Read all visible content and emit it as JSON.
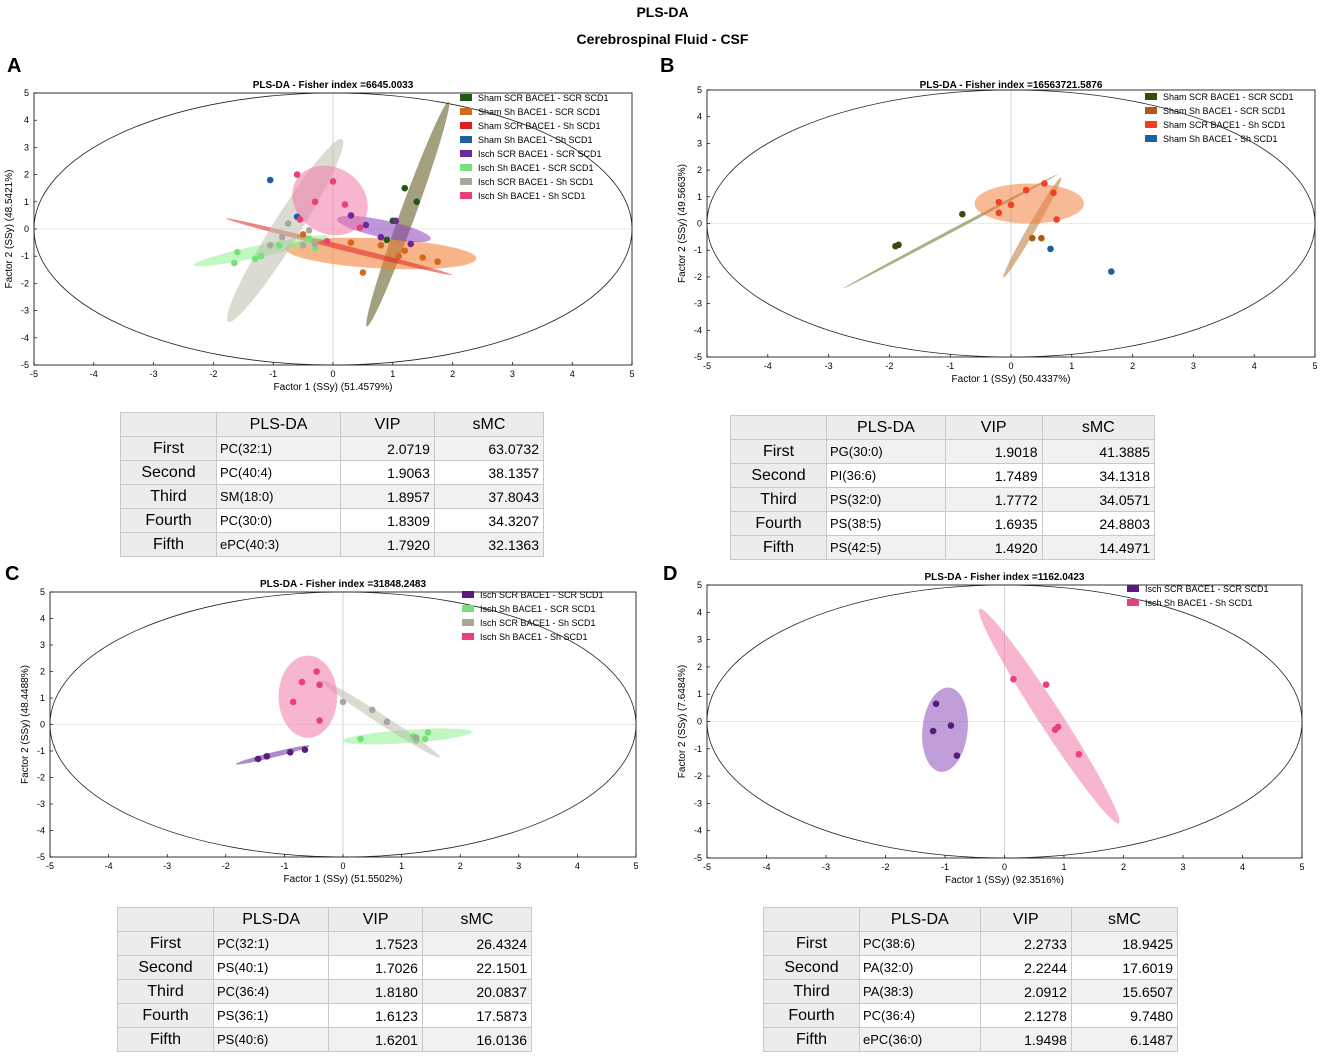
{
  "figure": {
    "title": "PLS-DA",
    "subtitle": "Cerebrospinal Fluid - CSF"
  },
  "panels": [
    {
      "letter": "A"
    },
    {
      "letter": "B"
    },
    {
      "letter": "C"
    },
    {
      "letter": "D"
    }
  ],
  "chart_data": [
    {
      "type": "scatter",
      "panel": "A",
      "title": "PLS-DA - Fisher index =6645.0033",
      "xlabel": "Factor 1 (SSy) (51.4579%)",
      "ylabel": "Factor 2 (SSy) (48.5421%)",
      "xlim": [
        -5,
        5
      ],
      "ylim": [
        -5,
        5
      ],
      "xticks": [
        -5,
        -4,
        -3,
        -2,
        -1,
        0,
        1,
        2,
        3,
        4,
        5
      ],
      "yticks": [
        -5,
        -4,
        -3,
        -2,
        -1,
        0,
        1,
        2,
        3,
        4,
        5
      ],
      "legend_position": "top-right",
      "series": [
        {
          "name": "Sham SCR BACE1 - SCR SCD1",
          "color": "#1e5a14",
          "fill": "#5a5014",
          "points": [
            [
              1.2,
              1.5
            ],
            [
              1.4,
              1.0
            ],
            [
              1.0,
              0.3
            ],
            [
              0.9,
              -0.4
            ]
          ],
          "ellipse": {
            "cx": 1.25,
            "cy": 0.55,
            "rx": 2.0,
            "ry": 0.28,
            "angle": 70
          }
        },
        {
          "name": "Sham Sh BACE1 - SCR SCD1",
          "color": "#d2691e",
          "fill": "#f07828",
          "points": [
            [
              -0.5,
              -0.2
            ],
            [
              0.3,
              -0.5
            ],
            [
              0.8,
              -0.6
            ],
            [
              1.1,
              -1.0
            ],
            [
              1.5,
              -1.05
            ],
            [
              1.75,
              -1.2
            ],
            [
              0.5,
              -1.6
            ],
            [
              1.2,
              -0.8
            ]
          ],
          "ellipse": {
            "cx": 0.8,
            "cy": -0.9,
            "rx": 1.6,
            "ry": 0.55,
            "angle": -3
          }
        },
        {
          "name": "Sham SCR BACE1 - Sh SCD1",
          "color": "#e02020",
          "fill": "#e02020",
          "points": [],
          "ellipse": {
            "cx": 0.1,
            "cy": -0.65,
            "rx": 1.95,
            "ry": 0.1,
            "angle": -14
          }
        },
        {
          "name": "Sham Sh BACE1 - Sh SCD1",
          "color": "#1f5fa0",
          "fill": "#4f9ae0",
          "points": [
            [
              -1.05,
              1.8
            ],
            [
              -0.6,
              0.45
            ]
          ],
          "ellipse": null
        },
        {
          "name": "Isch SCR BACE1 - SCR SCD1",
          "color": "#6a2a9a",
          "fill": "#8a3fbf",
          "points": [
            [
              0.3,
              0.5
            ],
            [
              0.8,
              -0.3
            ],
            [
              1.3,
              -0.55
            ],
            [
              1.05,
              0.3
            ],
            [
              0.55,
              0.15
            ]
          ],
          "ellipse": {
            "cx": 0.85,
            "cy": 0.0,
            "rx": 0.8,
            "ry": 0.32,
            "angle": -12
          }
        },
        {
          "name": "Isch Sh BACE1 - SCR SCD1",
          "color": "#78e078",
          "fill": "#8ef08e",
          "points": [
            [
              -1.6,
              -0.85
            ],
            [
              -1.3,
              -1.1
            ],
            [
              -1.2,
              -1.0
            ],
            [
              -0.9,
              -0.6
            ],
            [
              -0.4,
              -0.35
            ],
            [
              -0.3,
              -0.7
            ],
            [
              -1.65,
              -1.25
            ]
          ],
          "ellipse": {
            "cx": -1.2,
            "cy": -0.8,
            "rx": 1.15,
            "ry": 0.22,
            "angle": 12
          }
        },
        {
          "name": "Isch SCR BACE1 - Sh SCD1",
          "color": "#a8a898",
          "fill": "#bdbdad",
          "points": [
            [
              -1.05,
              -0.6
            ],
            [
              -0.85,
              -0.3
            ],
            [
              -0.75,
              0.2
            ],
            [
              -0.5,
              -0.6
            ],
            [
              -0.3,
              -0.55
            ],
            [
              -0.4,
              -0.05
            ]
          ],
          "ellipse": {
            "cx": -0.8,
            "cy": -0.05,
            "rx": 1.8,
            "ry": 0.5,
            "angle": 58
          }
        },
        {
          "name": "Isch Sh BACE1 - Sh SCD1",
          "color": "#e8407a",
          "fill": "#f078a8",
          "points": [
            [
              -0.6,
              2.0
            ],
            [
              0.0,
              1.75
            ],
            [
              -0.3,
              1.0
            ],
            [
              0.2,
              0.9
            ],
            [
              0.45,
              0.05
            ],
            [
              -0.1,
              -0.45
            ],
            [
              -0.55,
              0.35
            ]
          ],
          "ellipse": {
            "cx": -0.05,
            "cy": 1.05,
            "rx": 0.55,
            "ry": 1.45,
            "angle": 58
          }
        }
      ]
    },
    {
      "type": "scatter",
      "panel": "B",
      "title": "PLS-DA - Fisher index =16563721.5876",
      "xlabel": "Factor 1 (SSy) (50.4337%)",
      "ylabel": "Factor 2 (SSy) (49.5663%)",
      "xlim": [
        -5,
        5
      ],
      "ylim": [
        -5,
        5
      ],
      "xticks": [
        -5,
        -4,
        -3,
        -2,
        -1,
        0,
        1,
        2,
        3,
        4,
        5
      ],
      "yticks": [
        -5,
        -4,
        -3,
        -2,
        -1,
        0,
        1,
        2,
        3,
        4,
        5
      ],
      "legend_position": "top-right",
      "series": [
        {
          "name": "Sham SCR BACE1 - SCR SCD1",
          "color": "#3a4a10",
          "fill": "#6b7020",
          "points": [
            [
              -1.9,
              -0.85
            ],
            [
              -1.85,
              -0.8
            ],
            [
              -0.8,
              0.35
            ]
          ],
          "ellipse": {
            "cx": -1.0,
            "cy": -0.3,
            "rx": 2.0,
            "ry": 0.06,
            "angle": 28
          }
        },
        {
          "name": "Sham Sh BACE1 - SCR SCD1",
          "color": "#b05a10",
          "fill": "#b87a38",
          "points": [
            [
              0.35,
              -0.55
            ],
            [
              0.5,
              -0.55
            ]
          ],
          "ellipse": {
            "cx": 0.35,
            "cy": -0.15,
            "rx": 0.95,
            "ry": 0.15,
            "angle": 60
          }
        },
        {
          "name": "Sham SCR BACE1 - Sh SCD1",
          "color": "#f04020",
          "fill": "#f08040",
          "points": [
            [
              0.25,
              1.25
            ],
            [
              0.55,
              1.5
            ],
            [
              0.7,
              1.15
            ],
            [
              -0.2,
              0.8
            ],
            [
              0.0,
              0.7
            ],
            [
              0.75,
              0.15
            ],
            [
              -0.2,
              0.4
            ]
          ],
          "ellipse": {
            "cx": 0.3,
            "cy": 0.75,
            "rx": 0.9,
            "ry": 0.75,
            "angle": 0
          }
        },
        {
          "name": "Sham Sh BACE1 - Sh SCD1",
          "color": "#1f5fa0",
          "fill": "#4f9ae0",
          "points": [
            [
              0.65,
              -0.95
            ],
            [
              1.65,
              -1.8
            ]
          ],
          "ellipse": null
        }
      ]
    },
    {
      "type": "scatter",
      "panel": "C",
      "title": "PLS-DA - Fisher index =31848.2483",
      "xlabel": "Factor 1 (SSy) (51.5502%)",
      "ylabel": "Factor 2 (SSy) (48.4488%)",
      "xlim": [
        -5,
        5
      ],
      "ylim": [
        -5,
        5
      ],
      "xticks": [
        -5,
        -4,
        -3,
        -2,
        -1,
        0,
        1,
        2,
        3,
        4,
        5
      ],
      "yticks": [
        -5,
        -4,
        -3,
        -2,
        -1,
        0,
        1,
        2,
        3,
        4,
        5
      ],
      "legend_position": "top-right",
      "series": [
        {
          "name": "Isch SCR BACE1 - SCR SCD1",
          "color": "#5a1a82",
          "fill": "#6a2a9a",
          "points": [
            [
              -1.45,
              -1.3
            ],
            [
              -1.3,
              -1.2
            ],
            [
              -0.9,
              -1.05
            ],
            [
              -0.65,
              -0.95
            ]
          ],
          "ellipse": {
            "cx": -1.2,
            "cy": -1.15,
            "rx": 0.65,
            "ry": 0.1,
            "angle": 14
          }
        },
        {
          "name": "Isch Sh BACE1 - SCR SCD1",
          "color": "#78e078",
          "fill": "#8ef08e",
          "points": [
            [
              0.3,
              -0.55
            ],
            [
              1.45,
              -0.3
            ],
            [
              1.2,
              -0.45
            ],
            [
              1.4,
              -0.55
            ],
            [
              1.25,
              -0.6
            ]
          ],
          "ellipse": {
            "cx": 1.1,
            "cy": -0.45,
            "rx": 1.1,
            "ry": 0.25,
            "angle": 4
          }
        },
        {
          "name": "Isch SCR BACE1 - Sh SCD1",
          "color": "#a8a898",
          "fill": "#bdbdad",
          "points": [
            [
              0.0,
              0.85
            ],
            [
              0.5,
              0.55
            ],
            [
              0.75,
              0.1
            ],
            [
              1.25,
              -0.5
            ]
          ],
          "ellipse": {
            "cx": 0.65,
            "cy": 0.2,
            "rx": 1.2,
            "ry": 0.18,
            "angle": -33
          }
        },
        {
          "name": "Isch Sh BACE1 - Sh SCD1",
          "color": "#e8407a",
          "fill": "#f078a8",
          "points": [
            [
              -0.7,
              1.6
            ],
            [
              -0.45,
              2.0
            ],
            [
              -0.4,
              1.5
            ],
            [
              -0.85,
              0.85
            ],
            [
              -0.4,
              0.15
            ]
          ],
          "ellipse": {
            "cx": -0.6,
            "cy": 1.05,
            "rx": 0.5,
            "ry": 1.55,
            "angle": 0
          }
        }
      ]
    },
    {
      "type": "scatter",
      "panel": "D",
      "title": "PLS-DA - Fisher index =1162.0423",
      "xlabel": "Factor 1 (SSy) (92.3516%)",
      "ylabel": "Factor 2 (SSy) (7.6484%)",
      "xlim": [
        -5,
        5
      ],
      "ylim": [
        -5,
        5
      ],
      "xticks": [
        -5,
        -4,
        -3,
        -2,
        -1,
        0,
        1,
        2,
        3,
        4,
        5
      ],
      "yticks": [
        -5,
        -4,
        -3,
        -2,
        -1,
        0,
        1,
        2,
        3,
        4,
        5
      ],
      "legend_position": "top-left",
      "series": [
        {
          "name": "Isch SCR BACE1 - SCR SCD1",
          "color": "#5a1a82",
          "fill": "#8a4fba",
          "points": [
            [
              -1.15,
              0.65
            ],
            [
              -0.9,
              -0.15
            ],
            [
              -1.2,
              -0.35
            ],
            [
              -0.8,
              -1.25
            ]
          ],
          "ellipse": {
            "cx": -1.0,
            "cy": -0.3,
            "rx": 0.38,
            "ry": 1.55,
            "angle": -6
          }
        },
        {
          "name": "Isch Sh BACE1 - Sh SCD1",
          "color": "#e8407a",
          "fill": "#f078a8",
          "points": [
            [
              0.15,
              1.55
            ],
            [
              0.7,
              1.35
            ],
            [
              0.9,
              -0.2
            ],
            [
              0.85,
              -0.3
            ],
            [
              1.25,
              -1.2
            ]
          ],
          "ellipse": {
            "cx": 0.75,
            "cy": 0.2,
            "rx": 2.15,
            "ry": 0.42,
            "angle": -57
          }
        }
      ]
    }
  ],
  "tables": [
    {
      "headers": [
        "PLS-DA",
        "VIP",
        "sMC"
      ],
      "rows": [
        {
          "rank": "First",
          "lipid": "PC(32:1)",
          "vip": "2.0719",
          "smc": "63.0732"
        },
        {
          "rank": "Second",
          "lipid": "PC(40:4)",
          "vip": "1.9063",
          "smc": "38.1357"
        },
        {
          "rank": "Third",
          "lipid": "SM(18:0)",
          "vip": "1.8957",
          "smc": "37.8043"
        },
        {
          "rank": "Fourth",
          "lipid": "PC(30:0)",
          "vip": "1.8309",
          "smc": "34.3207"
        },
        {
          "rank": "Fifth",
          "lipid": "ePC(40:3)",
          "vip": "1.7920",
          "smc": "32.1363"
        }
      ]
    },
    {
      "headers": [
        "PLS-DA",
        "VIP",
        "sMC"
      ],
      "rows": [
        {
          "rank": "First",
          "lipid": "PG(30:0)",
          "vip": "1.9018",
          "smc": "41.3885"
        },
        {
          "rank": "Second",
          "lipid": "PI(36:6)",
          "vip": "1.7489",
          "smc": "34.1318"
        },
        {
          "rank": "Third",
          "lipid": "PS(32:0)",
          "vip": "1.7772",
          "smc": "34.0571"
        },
        {
          "rank": "Fourth",
          "lipid": "PS(38:5)",
          "vip": "1.6935",
          "smc": "24.8803"
        },
        {
          "rank": "Fifth",
          "lipid": "PS(42:5)",
          "vip": "1.4920",
          "smc": "14.4971"
        }
      ]
    },
    {
      "headers": [
        "PLS-DA",
        "VIP",
        "sMC"
      ],
      "rows": [
        {
          "rank": "First",
          "lipid": "PC(32:1)",
          "vip": "1.7523",
          "smc": "26.4324"
        },
        {
          "rank": "Second",
          "lipid": "PS(40:1)",
          "vip": "1.7026",
          "smc": "22.1501"
        },
        {
          "rank": "Third",
          "lipid": "PC(36:4)",
          "vip": "1.8180",
          "smc": "20.0837"
        },
        {
          "rank": "Fourth",
          "lipid": "PS(36:1)",
          "vip": "1.6123",
          "smc": "17.5873"
        },
        {
          "rank": "Fifth",
          "lipid": "PS(40:6)",
          "vip": "1.6201",
          "smc": "16.0136"
        }
      ]
    },
    {
      "headers": [
        "PLS-DA",
        "VIP",
        "sMC"
      ],
      "rows": [
        {
          "rank": "First",
          "lipid": "PC(38:6)",
          "vip": "2.2733",
          "smc": "18.9425"
        },
        {
          "rank": "Second",
          "lipid": "PA(32:0)",
          "vip": "2.2244",
          "smc": "17.6019"
        },
        {
          "rank": "Third",
          "lipid": "PA(38:3)",
          "vip": "2.0912",
          "smc": "15.6507"
        },
        {
          "rank": "Fourth",
          "lipid": "PC(36:4)",
          "vip": "2.1278",
          "smc": "9.7480"
        },
        {
          "rank": "Fifth",
          "lipid": "ePC(36:0)",
          "vip": "1.9498",
          "smc": "6.1487"
        }
      ]
    }
  ]
}
